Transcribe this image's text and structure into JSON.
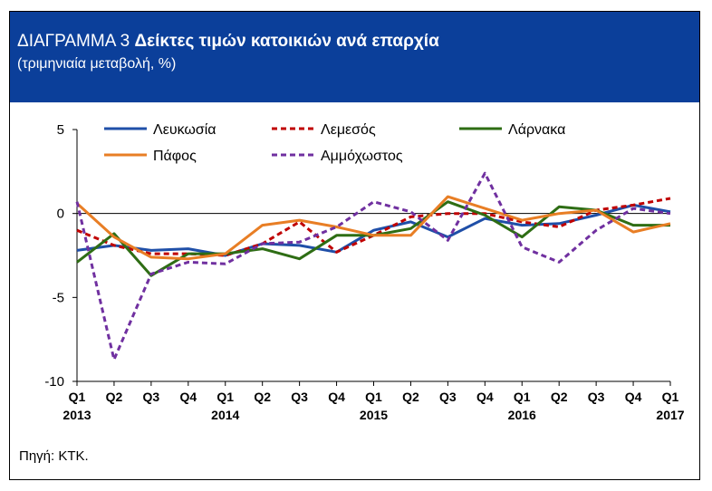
{
  "header": {
    "title_prefix": "ΔΙΑΓΡΑΜΜΑ 3",
    "title_bold": "Δείκτες τιμών κατοικιών ανά επαρχία",
    "subtitle": "(τριμηνιαία μεταβολή, %)"
  },
  "source": "Πηγή: ΚΤΚ.",
  "colors": {
    "header_bg": "#0b3f9a",
    "lefkosia": "#1f4fa8",
    "lemesos": "#c00000",
    "larnaka": "#2e6d14",
    "pafos": "#e87e25",
    "ammochostos": "#7030a0"
  },
  "chart_data": {
    "type": "line",
    "title": "Δείκτες τιμών κατοικιών ανά επαρχία",
    "ylabel": "",
    "xlabel": "",
    "ylim": [
      -10,
      5
    ],
    "yticks": [
      5,
      0,
      -5,
      -10
    ],
    "zero_line": true,
    "grid": false,
    "legend_position": "top",
    "quarter_labels": [
      "Q1",
      "Q2",
      "Q3",
      "Q4",
      "Q1",
      "Q2",
      "Q3",
      "Q4",
      "Q1",
      "Q2",
      "Q3",
      "Q4",
      "Q1",
      "Q2",
      "Q3",
      "Q4",
      "Q1"
    ],
    "year_labels": [
      {
        "index": 0,
        "label": "2013"
      },
      {
        "index": 4,
        "label": "2014"
      },
      {
        "index": 8,
        "label": "2015"
      },
      {
        "index": 12,
        "label": "2016"
      },
      {
        "index": 16,
        "label": "2017"
      }
    ],
    "series": [
      {
        "key": "lefkosia",
        "name": "Λευκωσία",
        "style": "solid",
        "color": "#1f4fa8",
        "values": [
          -2.2,
          -1.9,
          -2.2,
          -2.1,
          -2.5,
          -1.8,
          -1.9,
          -2.3,
          -1.0,
          -0.5,
          -1.4,
          -0.3,
          -0.7,
          -0.6,
          -0.1,
          0.5,
          0.1
        ]
      },
      {
        "key": "lemesos",
        "name": "Λεμεσός",
        "style": "dashed",
        "color": "#c00000",
        "values": [
          -1.0,
          -1.9,
          -2.4,
          -2.4,
          -2.5,
          -1.8,
          -0.5,
          -2.3,
          -1.3,
          -0.2,
          0.0,
          0.0,
          -0.5,
          -0.8,
          0.2,
          0.5,
          0.9
        ]
      },
      {
        "key": "larnaka",
        "name": "Λάρνακα",
        "style": "solid",
        "color": "#2e6d14",
        "values": [
          -2.9,
          -1.2,
          -3.7,
          -2.4,
          -2.4,
          -2.1,
          -2.7,
          -1.3,
          -1.3,
          -0.9,
          0.7,
          -0.1,
          -1.4,
          0.4,
          0.2,
          -0.7,
          -0.7
        ]
      },
      {
        "key": "pafos",
        "name": "Πάφος",
        "style": "solid",
        "color": "#e87e25",
        "values": [
          0.6,
          -1.4,
          -2.6,
          -2.7,
          -2.4,
          -0.7,
          -0.4,
          -0.8,
          -1.3,
          -1.3,
          1.0,
          0.3,
          -0.4,
          0.0,
          0.2,
          -1.1,
          -0.6
        ]
      },
      {
        "key": "ammochostos",
        "name": "Αμμόχωστος",
        "style": "dashed",
        "color": "#7030a0",
        "values": [
          0.7,
          -8.7,
          -3.6,
          -2.9,
          -3.0,
          -1.8,
          -1.7,
          -0.8,
          0.7,
          0.1,
          -1.6,
          2.4,
          -2.0,
          -2.9,
          -1.0,
          0.3,
          0.0
        ]
      }
    ]
  }
}
